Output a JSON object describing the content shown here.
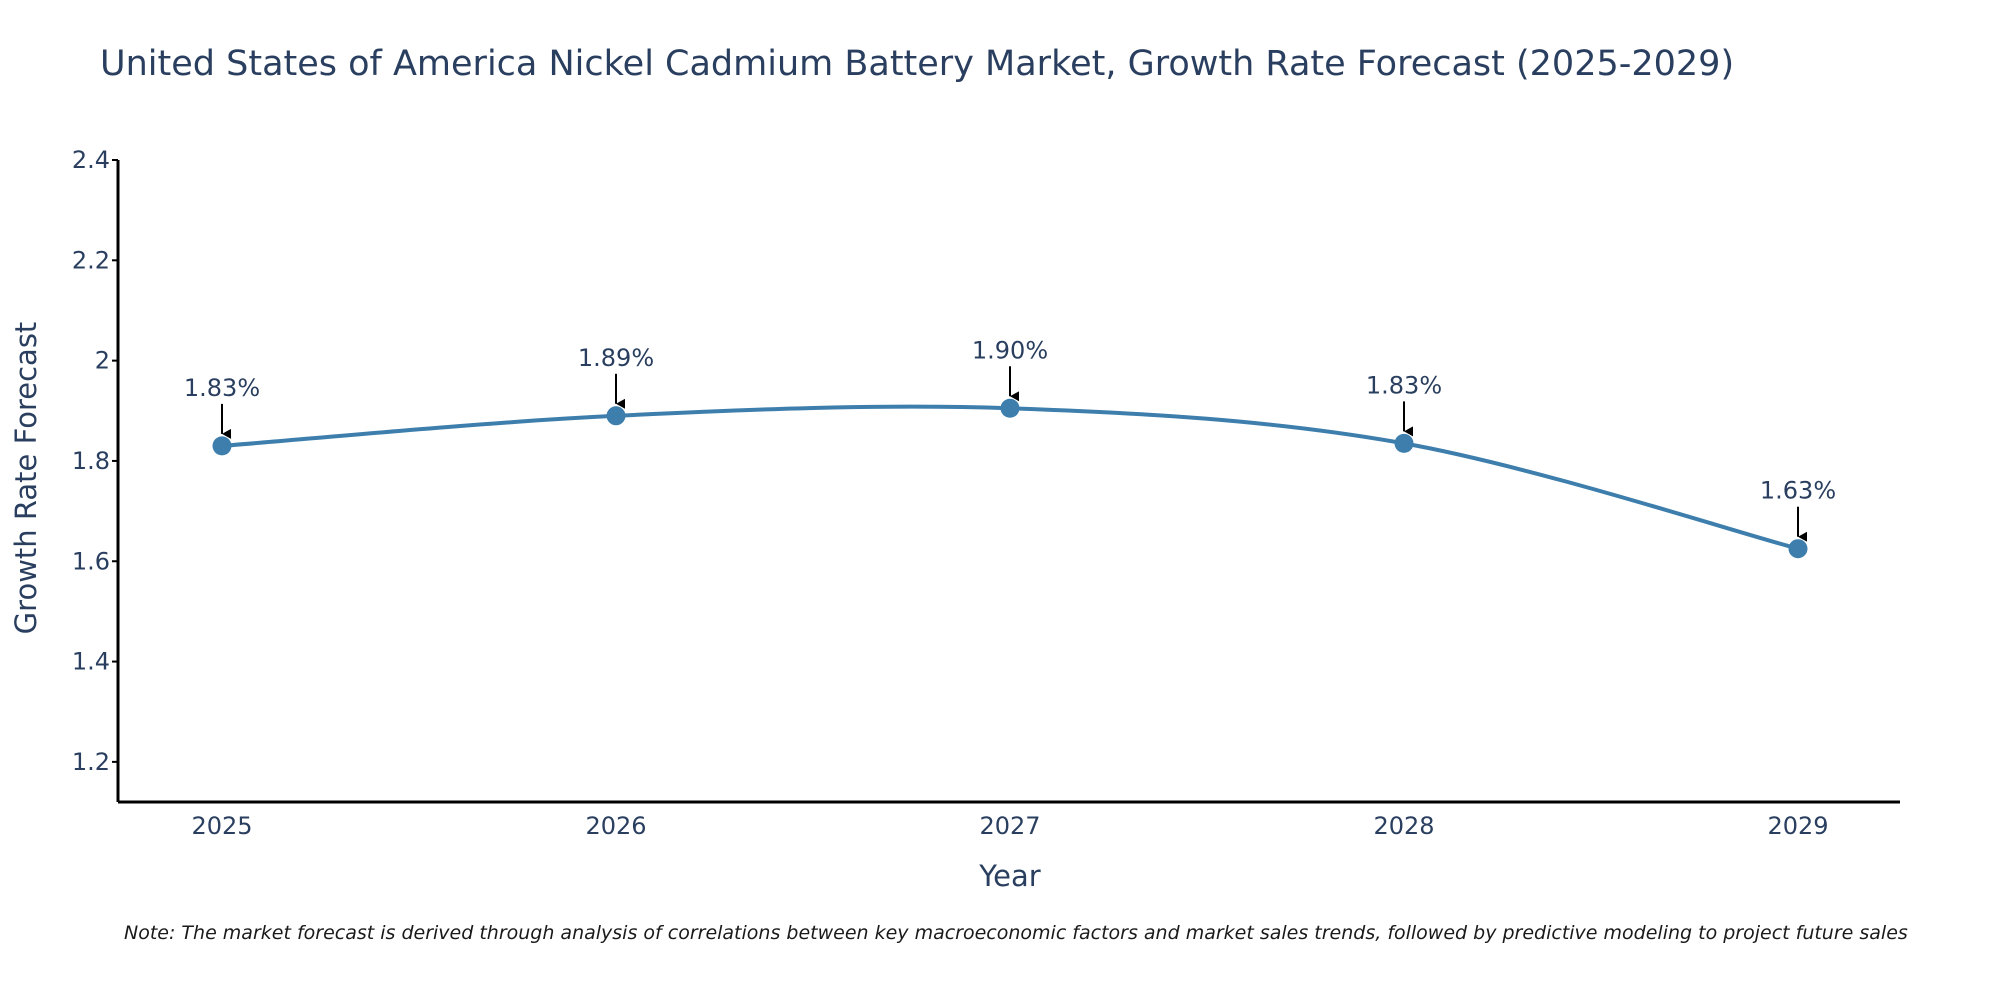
{
  "chart_data": {
    "type": "line",
    "title": "United States of America Nickel Cadmium Battery Market, Growth Rate Forecast (2025-2029)",
    "xlabel": "Year",
    "ylabel": "Growth Rate Forecast",
    "categories": [
      "2025",
      "2026",
      "2027",
      "2028",
      "2029"
    ],
    "values": [
      1.83,
      1.89,
      1.905,
      1.835,
      1.625
    ],
    "data_labels": [
      "1.83%",
      "1.89%",
      "1.90%",
      "1.83%",
      "1.63%"
    ],
    "ylim": [
      1.12,
      2.4
    ],
    "yticks": [
      1.2,
      1.4,
      1.6,
      1.8,
      2,
      2.2,
      2.4
    ],
    "ytick_labels": [
      "1.2",
      "1.4",
      "1.6",
      "1.8",
      "2",
      "2.2",
      "2.4"
    ],
    "grid": false,
    "line_color": "#3d7ead",
    "arrow_color": "#000000"
  },
  "note": "Note: The market forecast is derived through analysis of correlations between key macroeconomic factors and market sales trends, followed by predictive modeling to project future sales"
}
